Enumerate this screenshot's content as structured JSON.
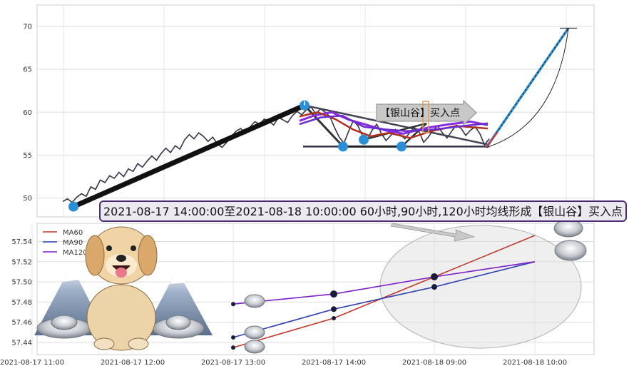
{
  "chart_data": [
    {
      "type": "line",
      "title": "",
      "xlabel": "",
      "ylabel": "",
      "ylim": [
        47.8,
        72.5
      ],
      "y_ticks": [
        50,
        55,
        60,
        65,
        70
      ],
      "grid": true,
      "price_series": [
        49.6,
        49.9,
        49.5,
        50.1,
        50.5,
        50.2,
        51.3,
        51.0,
        52.1,
        51.8,
        52.6,
        52.3,
        53.0,
        52.5,
        53.4,
        53.1,
        54.0,
        53.6,
        54.3,
        54.9,
        54.4,
        55.2,
        55.8,
        55.3,
        56.1,
        55.7,
        56.8,
        57.4,
        56.9,
        57.6,
        57.2,
        56.6,
        57.1,
        56.3,
        55.9,
        56.5,
        57.2,
        57.8,
        58.1,
        57.5,
        58.3,
        58.9,
        58.6,
        59.2,
        59.0,
        58.5,
        59.4,
        59.1,
        58.8,
        59.6,
        60.1,
        59.7,
        60.3,
        60.6,
        59.8,
        60.4,
        60.0,
        59.5,
        58.2,
        57.1,
        56.4,
        57.8,
        59.0,
        58.4,
        57.2,
        56.8,
        57.9,
        58.6,
        57.5,
        56.7,
        57.3,
        58.0,
        57.4,
        56.9,
        57.6,
        58.2,
        57.8,
        56.5,
        57.1,
        57.9,
        58.4,
        57.6,
        57.0,
        57.8,
        58.5,
        58.1,
        57.3,
        57.9,
        58.3,
        57.5,
        56.2,
        56.9
      ],
      "annotation": "【银山谷】买入点",
      "markers": [
        {
          "label": "low",
          "value": 49.0
        },
        {
          "label": "peak",
          "value": 60.8
        },
        {
          "label": "dip1",
          "value": 56.0
        },
        {
          "label": "dip2",
          "value": 56.8
        },
        {
          "label": "dip3",
          "value": 56.0
        },
        {
          "label": "target",
          "value": 69.8
        }
      ],
      "colors": {
        "price": "#333344",
        "trend": "#111111",
        "ma_red": "#b03020",
        "ma_purple": "#8a2be2",
        "projection": "#2f8fd0",
        "marker": "#2a8fd6"
      }
    },
    {
      "type": "line",
      "title": "",
      "xlabel": "",
      "ylabel": "",
      "ylim": [
        57.428,
        57.558
      ],
      "y_ticks": [
        57.44,
        57.46,
        57.48,
        57.5,
        57.52,
        57.54
      ],
      "x_ticks": [
        "2021-08-17 11:00",
        "2021-08-17 12:00",
        "2021-08-17 13:00",
        "2021-08-17 14:00",
        "2021-08-18 09:00",
        "2021-08-18 10:00"
      ],
      "points_x": [
        "2021-08-17 13:00",
        "2021-08-17 14:00",
        "2021-08-18 09:00",
        "2021-08-18 10:00"
      ],
      "grid": true,
      "legend_position": "top-left",
      "series": [
        {
          "name": "MA60",
          "color": "#c0392b",
          "values": [
            57.435,
            57.464,
            57.505,
            57.546
          ]
        },
        {
          "name": "MA90",
          "color": "#3040b0",
          "values": [
            57.445,
            57.473,
            57.495,
            57.52
          ]
        },
        {
          "name": "MA120",
          "color": "#7b1fc8",
          "values": [
            57.478,
            57.488,
            57.505,
            57.52
          ]
        }
      ]
    }
  ],
  "banner": "2021-08-17 14:00:00至2021-08-18 10:00:00 60小时,90小时,120小时均线形成【银山谷】买入点"
}
